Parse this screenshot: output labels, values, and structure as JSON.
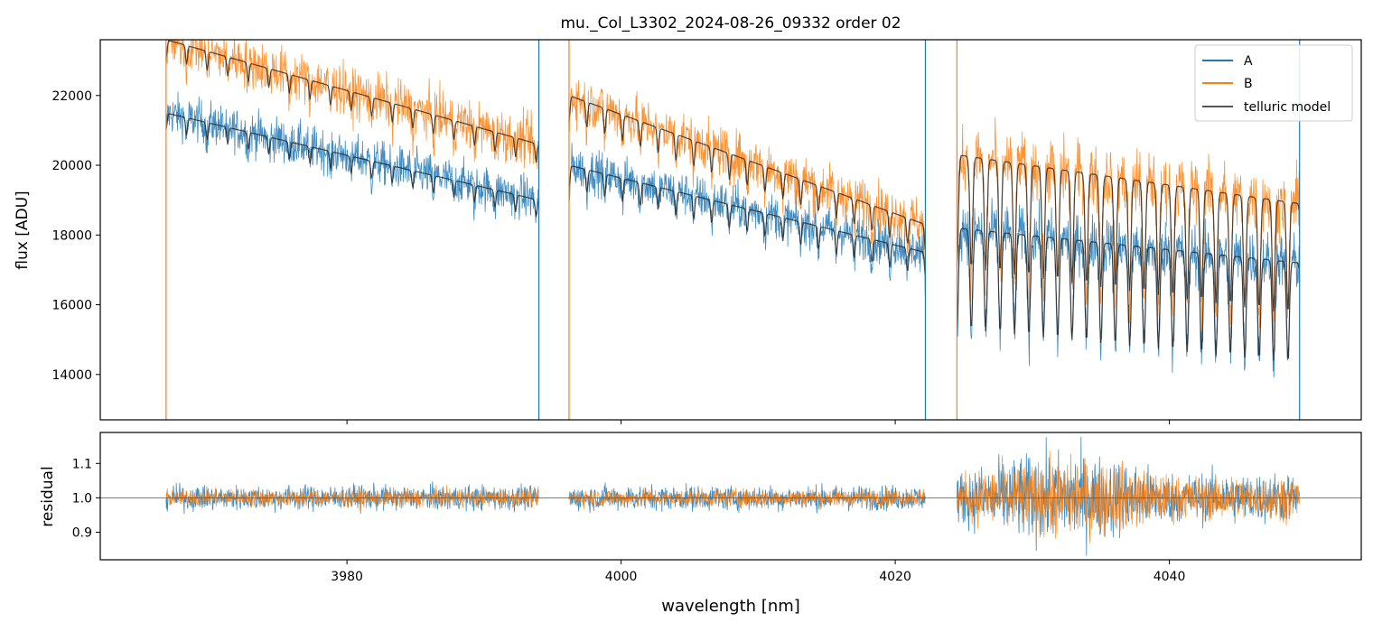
{
  "title": "mu._Col_L3302_2024-08-26_09332  order 02",
  "colors": {
    "A": "#1f77b4",
    "B": "#ff7f0e",
    "model": "#222222"
  },
  "chart_data": [
    {
      "type": "line",
      "panel": "top",
      "xlabel": "",
      "ylabel": "flux [ADU]",
      "xlim": [
        3962,
        4054
      ],
      "ylim": [
        12700,
        23600
      ],
      "yticks": [
        14000,
        16000,
        18000,
        20000,
        22000
      ],
      "grid": false,
      "legend": {
        "placement": "top-right",
        "entries": [
          "A",
          "B",
          "telluric model"
        ]
      },
      "segments": [
        3966.8,
        3994.0,
        3996.2,
        4022.2,
        4024.5,
        4049.5
      ],
      "series": [
        {
          "name": "A",
          "color_key": "A",
          "x_start": [
            3966.8,
            3996.2,
            4024.5
          ],
          "y_start": [
            21500,
            20000,
            18200
          ],
          "y_end": [
            19000,
            17500,
            17200
          ],
          "noise": 600,
          "dip_depth": 900
        },
        {
          "name": "B",
          "color_key": "B",
          "x_start": [
            3966.8,
            3996.2,
            4024.5
          ],
          "y_start": [
            23600,
            22000,
            20300
          ],
          "y_end": [
            20600,
            18300,
            18900
          ],
          "noise": 700,
          "dip_depth": 1000
        },
        {
          "name": "telluric model",
          "color_key": "model",
          "description": "smooth model curves drawn over A and B"
        }
      ]
    },
    {
      "type": "line",
      "panel": "bottom",
      "xlabel": "wavelength [nm]",
      "ylabel": "residual",
      "xlim": [
        3962,
        4054
      ],
      "ylim": [
        0.82,
        1.19
      ],
      "xticks": [
        3980,
        4000,
        4020,
        4040
      ],
      "yticks": [
        0.9,
        1.0,
        1.1
      ],
      "reference_line": 1.0,
      "series": [
        {
          "name": "A",
          "color_key": "A",
          "scatter": [
            0.035,
            0.035,
            0.07
          ]
        },
        {
          "name": "B",
          "color_key": "B",
          "scatter": [
            0.025,
            0.025,
            0.06
          ]
        }
      ]
    }
  ]
}
